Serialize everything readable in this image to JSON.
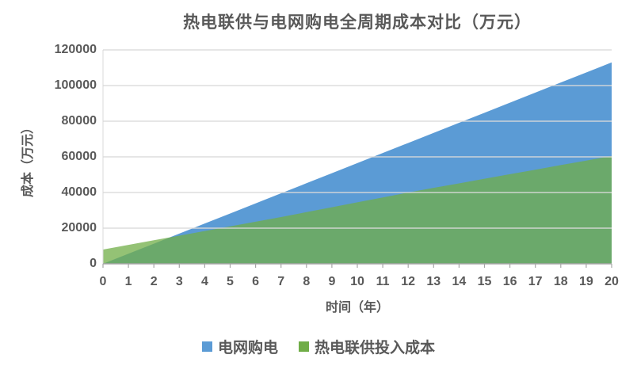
{
  "chart_data": {
    "type": "area",
    "title": "热电联供与电网购电全周期成本对比（万元）",
    "xlabel": "时间（年）",
    "ylabel": "成本（万元）",
    "x": [
      0,
      1,
      2,
      3,
      4,
      5,
      6,
      7,
      8,
      9,
      10,
      11,
      12,
      13,
      14,
      15,
      16,
      17,
      18,
      19,
      20
    ],
    "x_tick_labels": [
      "0",
      "1",
      "2",
      "3",
      "4",
      "5",
      "6",
      "7",
      "8",
      "9",
      "10",
      "11",
      "12",
      "13",
      "14",
      "15",
      "16",
      "17",
      "18",
      "19",
      "20"
    ],
    "y_ticks": [
      0,
      20000,
      40000,
      60000,
      80000,
      100000,
      120000
    ],
    "y_tick_labels": [
      "0",
      "20000",
      "40000",
      "60000",
      "80000",
      "100000",
      "120000"
    ],
    "ylim": [
      0,
      120000
    ],
    "xlim": [
      0,
      20
    ],
    "grid": true,
    "legend_position": "bottom",
    "series": [
      {
        "name": "电网购电",
        "color": "#5B9BD5",
        "opacity": 1,
        "values": [
          0,
          5650,
          11300,
          16950,
          22600,
          28250,
          33900,
          39550,
          45200,
          50850,
          56500,
          62150,
          67800,
          73450,
          79100,
          84750,
          90400,
          96050,
          101700,
          107350,
          113000
        ]
      },
      {
        "name": "热电联供投入成本",
        "color": "#70AD47",
        "opacity": 0.75,
        "values": [
          8000,
          10600,
          13200,
          15800,
          18400,
          21000,
          23600,
          26200,
          29000,
          31700,
          34500,
          37200,
          40000,
          42600,
          45100,
          47700,
          50300,
          52800,
          55400,
          57900,
          60500
        ]
      }
    ],
    "colors": {
      "background": "#FFFFFF",
      "text": "#595959",
      "gridline": "#D9D9D9",
      "axis_line": "#A6A6A6"
    }
  }
}
